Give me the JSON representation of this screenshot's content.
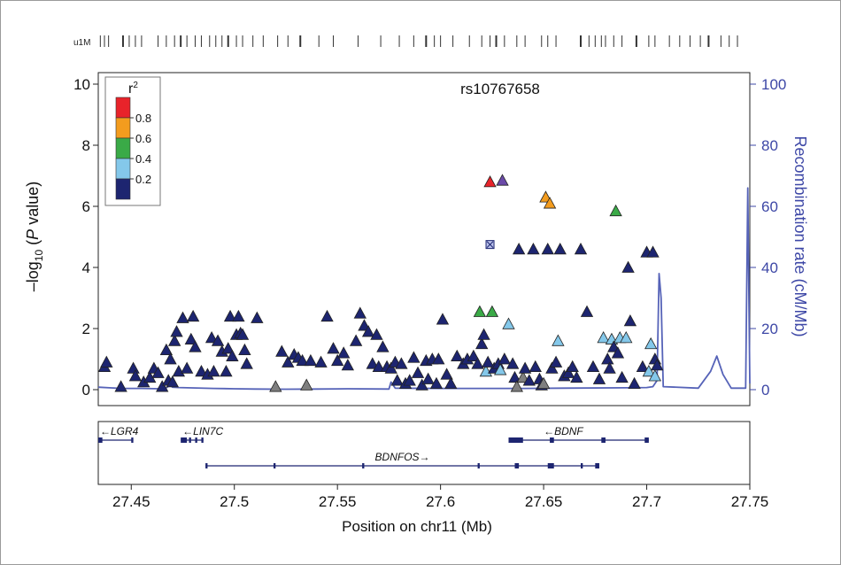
{
  "chart_data": {
    "type": "scatter",
    "title": "rs10767658",
    "xlabel": "Position on chr11 (Mb)",
    "ylabel_left": [
      "–log",
      "10",
      " (",
      "P",
      " value)"
    ],
    "ylabel_right": "Recombination rate (cM/Mb)",
    "xlim": [
      27.434,
      27.75
    ],
    "ylim": [
      0,
      10
    ],
    "ylim_right": [
      0,
      100
    ],
    "x_ticks": [
      27.45,
      27.5,
      27.55,
      27.6,
      27.65,
      27.7,
      27.75
    ],
    "x_tick_labels": [
      "27.45",
      "27.5",
      "27.55",
      "27.6",
      "27.65",
      "27.7",
      "27.75"
    ],
    "y_ticks": [
      0,
      2,
      4,
      6,
      8,
      10
    ],
    "y_tick_labels": [
      "0",
      "2",
      "4",
      "6",
      "8",
      "10"
    ],
    "y2_ticks": [
      0,
      20,
      40,
      60,
      80,
      100
    ],
    "y2_tick_labels": [
      "0",
      "20",
      "40",
      "60",
      "80",
      "100"
    ],
    "legend": {
      "title": "r",
      "title_sup": "2",
      "bins": [
        {
          "label": "0.8",
          "color": "#e8232a"
        },
        {
          "label": "0.6",
          "color": "#f39c1e"
        },
        {
          "label": "0.4",
          "color": "#3aaa47"
        },
        {
          "label": "0.2",
          "color": "#84c8ea"
        },
        {
          "label": "",
          "color": "#1d2570"
        }
      ],
      "placement": "top-left"
    },
    "colors": {
      "navy": "#1d2570",
      "lightblue": "#84c8ea",
      "green": "#3aaa47",
      "orange": "#f39c1e",
      "red": "#e8232a",
      "purple": "#6b4aa8",
      "grey": "#7f7f7f",
      "recomb_line": "#5663b8",
      "axis_right": "#3d47a6"
    },
    "lead_snp": {
      "x": 27.624,
      "y": 4.75
    },
    "points": [
      {
        "x": 27.437,
        "y": 0.75,
        "c": "navy"
      },
      {
        "x": 27.438,
        "y": 0.9,
        "c": "navy"
      },
      {
        "x": 27.445,
        "y": 0.1,
        "c": "navy"
      },
      {
        "x": 27.451,
        "y": 0.7,
        "c": "navy"
      },
      {
        "x": 27.452,
        "y": 0.45,
        "c": "navy"
      },
      {
        "x": 27.456,
        "y": 0.25,
        "c": "navy"
      },
      {
        "x": 27.459,
        "y": 0.4,
        "c": "navy"
      },
      {
        "x": 27.461,
        "y": 0.7,
        "c": "navy"
      },
      {
        "x": 27.463,
        "y": 0.55,
        "c": "navy"
      },
      {
        "x": 27.465,
        "y": 0.1,
        "c": "navy"
      },
      {
        "x": 27.467,
        "y": 1.3,
        "c": "navy"
      },
      {
        "x": 27.468,
        "y": 0.3,
        "c": "navy"
      },
      {
        "x": 27.469,
        "y": 1.0,
        "c": "navy"
      },
      {
        "x": 27.47,
        "y": 0.25,
        "c": "navy"
      },
      {
        "x": 27.471,
        "y": 1.6,
        "c": "navy"
      },
      {
        "x": 27.472,
        "y": 1.9,
        "c": "navy"
      },
      {
        "x": 27.473,
        "y": 0.6,
        "c": "navy"
      },
      {
        "x": 27.475,
        "y": 2.35,
        "c": "navy"
      },
      {
        "x": 27.477,
        "y": 0.7,
        "c": "navy"
      },
      {
        "x": 27.479,
        "y": 1.65,
        "c": "navy"
      },
      {
        "x": 27.48,
        "y": 2.4,
        "c": "navy"
      },
      {
        "x": 27.481,
        "y": 1.4,
        "c": "navy"
      },
      {
        "x": 27.484,
        "y": 0.6,
        "c": "navy"
      },
      {
        "x": 27.487,
        "y": 0.5,
        "c": "navy"
      },
      {
        "x": 27.489,
        "y": 1.7,
        "c": "navy"
      },
      {
        "x": 27.49,
        "y": 0.6,
        "c": "navy"
      },
      {
        "x": 27.492,
        "y": 1.6,
        "c": "navy"
      },
      {
        "x": 27.494,
        "y": 1.25,
        "c": "navy"
      },
      {
        "x": 27.496,
        "y": 0.6,
        "c": "navy"
      },
      {
        "x": 27.497,
        "y": 1.35,
        "c": "navy"
      },
      {
        "x": 27.498,
        "y": 2.4,
        "c": "navy"
      },
      {
        "x": 27.499,
        "y": 1.1,
        "c": "navy"
      },
      {
        "x": 27.501,
        "y": 1.8,
        "c": "navy"
      },
      {
        "x": 27.502,
        "y": 2.4,
        "c": "navy"
      },
      {
        "x": 27.503,
        "y": 1.85,
        "c": "navy"
      },
      {
        "x": 27.504,
        "y": 1.8,
        "c": "navy"
      },
      {
        "x": 27.505,
        "y": 1.3,
        "c": "navy"
      },
      {
        "x": 27.506,
        "y": 0.85,
        "c": "navy"
      },
      {
        "x": 27.511,
        "y": 2.35,
        "c": "navy"
      },
      {
        "x": 27.52,
        "y": 0.1,
        "c": "grey"
      },
      {
        "x": 27.523,
        "y": 1.25,
        "c": "navy"
      },
      {
        "x": 27.526,
        "y": 0.9,
        "c": "navy"
      },
      {
        "x": 27.529,
        "y": 1.15,
        "c": "navy"
      },
      {
        "x": 27.531,
        "y": 1.05,
        "c": "navy"
      },
      {
        "x": 27.533,
        "y": 0.95,
        "c": "navy"
      },
      {
        "x": 27.535,
        "y": 0.15,
        "c": "grey"
      },
      {
        "x": 27.537,
        "y": 0.95,
        "c": "navy"
      },
      {
        "x": 27.542,
        "y": 0.9,
        "c": "navy"
      },
      {
        "x": 27.545,
        "y": 2.4,
        "c": "navy"
      },
      {
        "x": 27.548,
        "y": 1.35,
        "c": "navy"
      },
      {
        "x": 27.55,
        "y": 0.95,
        "c": "navy"
      },
      {
        "x": 27.553,
        "y": 1.2,
        "c": "navy"
      },
      {
        "x": 27.555,
        "y": 0.8,
        "c": "navy"
      },
      {
        "x": 27.559,
        "y": 1.6,
        "c": "navy"
      },
      {
        "x": 27.561,
        "y": 2.5,
        "c": "navy"
      },
      {
        "x": 27.563,
        "y": 2.1,
        "c": "navy"
      },
      {
        "x": 27.565,
        "y": 1.9,
        "c": "navy"
      },
      {
        "x": 27.567,
        "y": 0.85,
        "c": "navy"
      },
      {
        "x": 27.569,
        "y": 1.8,
        "c": "navy"
      },
      {
        "x": 27.57,
        "y": 0.75,
        "c": "navy"
      },
      {
        "x": 27.572,
        "y": 1.4,
        "c": "navy"
      },
      {
        "x": 27.574,
        "y": 0.75,
        "c": "navy"
      },
      {
        "x": 27.576,
        "y": 0.7,
        "c": "navy"
      },
      {
        "x": 27.578,
        "y": 0.9,
        "c": "navy"
      },
      {
        "x": 27.579,
        "y": 0.3,
        "c": "navy"
      },
      {
        "x": 27.581,
        "y": 0.85,
        "c": "navy"
      },
      {
        "x": 27.583,
        "y": 0.2,
        "c": "navy"
      },
      {
        "x": 27.585,
        "y": 0.3,
        "c": "navy"
      },
      {
        "x": 27.587,
        "y": 1.05,
        "c": "navy"
      },
      {
        "x": 27.589,
        "y": 0.55,
        "c": "navy"
      },
      {
        "x": 27.591,
        "y": 0.15,
        "c": "navy"
      },
      {
        "x": 27.593,
        "y": 0.95,
        "c": "navy"
      },
      {
        "x": 27.594,
        "y": 0.35,
        "c": "navy"
      },
      {
        "x": 27.596,
        "y": 1.0,
        "c": "navy"
      },
      {
        "x": 27.598,
        "y": 0.2,
        "c": "navy"
      },
      {
        "x": 27.599,
        "y": 1.0,
        "c": "navy"
      },
      {
        "x": 27.601,
        "y": 2.3,
        "c": "navy"
      },
      {
        "x": 27.603,
        "y": 0.5,
        "c": "navy"
      },
      {
        "x": 27.605,
        "y": 0.2,
        "c": "navy"
      },
      {
        "x": 27.608,
        "y": 1.1,
        "c": "navy"
      },
      {
        "x": 27.611,
        "y": 0.85,
        "c": "navy"
      },
      {
        "x": 27.613,
        "y": 1.0,
        "c": "navy"
      },
      {
        "x": 27.616,
        "y": 1.1,
        "c": "navy"
      },
      {
        "x": 27.618,
        "y": 0.85,
        "c": "navy"
      },
      {
        "x": 27.619,
        "y": 2.55,
        "c": "green"
      },
      {
        "x": 27.62,
        "y": 1.5,
        "c": "navy"
      },
      {
        "x": 27.621,
        "y": 1.8,
        "c": "navy"
      },
      {
        "x": 27.622,
        "y": 0.6,
        "c": "lightblue"
      },
      {
        "x": 27.623,
        "y": 0.9,
        "c": "navy"
      },
      {
        "x": 27.624,
        "y": 6.8,
        "c": "red"
      },
      {
        "x": 27.625,
        "y": 2.55,
        "c": "green"
      },
      {
        "x": 27.626,
        "y": 0.7,
        "c": "navy"
      },
      {
        "x": 27.628,
        "y": 0.85,
        "c": "navy"
      },
      {
        "x": 27.629,
        "y": 0.65,
        "c": "lightblue"
      },
      {
        "x": 27.63,
        "y": 6.85,
        "c": "purple"
      },
      {
        "x": 27.631,
        "y": 1.0,
        "c": "navy"
      },
      {
        "x": 27.633,
        "y": 2.15,
        "c": "lightblue"
      },
      {
        "x": 27.635,
        "y": 0.85,
        "c": "navy"
      },
      {
        "x": 27.636,
        "y": 0.4,
        "c": "navy"
      },
      {
        "x": 27.637,
        "y": 0.1,
        "c": "grey"
      },
      {
        "x": 27.638,
        "y": 4.6,
        "c": "navy"
      },
      {
        "x": 27.64,
        "y": 0.4,
        "c": "grey"
      },
      {
        "x": 27.641,
        "y": 0.7,
        "c": "navy"
      },
      {
        "x": 27.643,
        "y": 0.3,
        "c": "navy"
      },
      {
        "x": 27.645,
        "y": 4.6,
        "c": "navy"
      },
      {
        "x": 27.646,
        "y": 0.75,
        "c": "navy"
      },
      {
        "x": 27.648,
        "y": 0.35,
        "c": "navy"
      },
      {
        "x": 27.649,
        "y": 0.15,
        "c": "navy"
      },
      {
        "x": 27.65,
        "y": 0.2,
        "c": "grey"
      },
      {
        "x": 27.651,
        "y": 6.3,
        "c": "orange"
      },
      {
        "x": 27.652,
        "y": 4.6,
        "c": "navy"
      },
      {
        "x": 27.653,
        "y": 6.1,
        "c": "orange"
      },
      {
        "x": 27.654,
        "y": 0.7,
        "c": "navy"
      },
      {
        "x": 27.656,
        "y": 0.9,
        "c": "navy"
      },
      {
        "x": 27.657,
        "y": 1.6,
        "c": "lightblue"
      },
      {
        "x": 27.658,
        "y": 4.6,
        "c": "navy"
      },
      {
        "x": 27.66,
        "y": 0.45,
        "c": "navy"
      },
      {
        "x": 27.662,
        "y": 0.55,
        "c": "navy"
      },
      {
        "x": 27.664,
        "y": 0.75,
        "c": "navy"
      },
      {
        "x": 27.666,
        "y": 0.4,
        "c": "navy"
      },
      {
        "x": 27.668,
        "y": 4.6,
        "c": "navy"
      },
      {
        "x": 27.671,
        "y": 2.55,
        "c": "navy"
      },
      {
        "x": 27.674,
        "y": 0.75,
        "c": "navy"
      },
      {
        "x": 27.677,
        "y": 0.35,
        "c": "navy"
      },
      {
        "x": 27.679,
        "y": 1.7,
        "c": "lightblue"
      },
      {
        "x": 27.681,
        "y": 1.0,
        "c": "navy"
      },
      {
        "x": 27.682,
        "y": 0.7,
        "c": "navy"
      },
      {
        "x": 27.683,
        "y": 1.65,
        "c": "lightblue"
      },
      {
        "x": 27.684,
        "y": 1.4,
        "c": "navy"
      },
      {
        "x": 27.685,
        "y": 5.85,
        "c": "green"
      },
      {
        "x": 27.686,
        "y": 1.2,
        "c": "navy"
      },
      {
        "x": 27.687,
        "y": 1.7,
        "c": "lightblue"
      },
      {
        "x": 27.688,
        "y": 0.4,
        "c": "navy"
      },
      {
        "x": 27.69,
        "y": 1.7,
        "c": "lightblue"
      },
      {
        "x": 27.691,
        "y": 4.0,
        "c": "navy"
      },
      {
        "x": 27.692,
        "y": 2.25,
        "c": "navy"
      },
      {
        "x": 27.694,
        "y": 0.2,
        "c": "navy"
      },
      {
        "x": 27.698,
        "y": 0.75,
        "c": "navy"
      },
      {
        "x": 27.7,
        "y": 4.5,
        "c": "navy"
      },
      {
        "x": 27.701,
        "y": 0.6,
        "c": "lightblue"
      },
      {
        "x": 27.702,
        "y": 1.5,
        "c": "lightblue"
      },
      {
        "x": 27.703,
        "y": 4.5,
        "c": "navy"
      },
      {
        "x": 27.704,
        "y": 0.45,
        "c": "lightblue"
      },
      {
        "x": 27.704,
        "y": 1.0,
        "c": "navy"
      },
      {
        "x": 27.705,
        "y": 0.8,
        "c": "navy"
      }
    ],
    "recombination": [
      [
        27.434,
        0.8
      ],
      [
        27.445,
        0.4
      ],
      [
        27.455,
        0.4
      ],
      [
        27.464,
        0.3
      ],
      [
        27.467,
        0.6
      ],
      [
        27.469,
        1.5
      ],
      [
        27.47,
        0.8
      ],
      [
        27.473,
        0.7
      ],
      [
        27.49,
        0.4
      ],
      [
        27.5,
        0.3
      ],
      [
        27.51,
        0.2
      ],
      [
        27.525,
        0.15
      ],
      [
        27.54,
        0.2
      ],
      [
        27.555,
        0.3
      ],
      [
        27.575,
        0.2
      ],
      [
        27.576,
        2.5
      ],
      [
        27.578,
        0.5
      ],
      [
        27.6,
        0.4
      ],
      [
        27.64,
        0.4
      ],
      [
        27.69,
        0.6
      ],
      [
        27.7,
        0.7
      ],
      [
        27.703,
        1.0
      ],
      [
        27.705,
        3.0
      ],
      [
        27.706,
        38.0
      ],
      [
        27.707,
        30.0
      ],
      [
        27.708,
        1.0
      ],
      [
        27.725,
        0.5
      ],
      [
        27.731,
        6.0
      ],
      [
        27.734,
        11.0
      ],
      [
        27.737,
        5.0
      ],
      [
        27.741,
        0.5
      ],
      [
        27.748,
        0.5
      ],
      [
        27.749,
        66.0
      ],
      [
        27.75,
        2.0
      ]
    ],
    "marker_ticks": [
      27.435,
      27.437,
      27.439,
      27.446,
      27.449,
      27.452,
      27.455,
      27.463,
      27.467,
      27.471,
      27.474,
      27.477,
      27.481,
      27.484,
      27.488,
      27.491,
      27.494,
      27.497,
      27.501,
      27.504,
      27.509,
      27.514,
      27.521,
      27.526,
      27.532,
      27.541,
      27.548,
      27.56,
      27.571,
      27.58,
      27.587,
      27.593,
      27.597,
      27.6,
      27.606,
      27.614,
      27.62,
      27.624,
      27.627,
      27.631,
      27.637,
      27.641,
      27.649,
      27.652,
      27.656,
      27.668,
      27.672,
      27.675,
      27.678,
      27.68,
      27.684,
      27.688,
      27.695,
      27.701,
      27.704,
      27.711,
      27.716,
      27.721,
      27.726,
      27.73,
      27.736,
      27.74,
      27.744
    ],
    "marker_label": "u1M",
    "genes": [
      {
        "name": "LGR4",
        "start": 27.434,
        "end": 27.451,
        "row": 0,
        "strand": "-",
        "exons": [
          [
            27.434,
            27.436
          ],
          [
            27.45,
            27.451
          ]
        ]
      },
      {
        "name": "LIN7C",
        "start": 27.474,
        "end": 27.485,
        "row": 0,
        "strand": "-",
        "exons": [
          [
            27.474,
            27.477
          ],
          [
            27.478,
            27.479
          ],
          [
            27.481,
            27.482
          ],
          [
            27.484,
            27.485
          ]
        ]
      },
      {
        "name": "BDNF",
        "start": 27.633,
        "end": 27.701,
        "row": 0,
        "strand": "-",
        "exons": [
          [
            27.633,
            27.64
          ],
          [
            27.653,
            27.655
          ],
          [
            27.678,
            27.68
          ],
          [
            27.699,
            27.701
          ]
        ]
      },
      {
        "name": "BDNFOS",
        "start": 27.486,
        "end": 27.677,
        "row": 1,
        "strand": "+",
        "exons": [
          [
            27.486,
            27.487
          ],
          [
            27.519,
            27.52
          ],
          [
            27.562,
            27.563
          ],
          [
            27.618,
            27.619
          ],
          [
            27.636,
            27.638
          ],
          [
            27.652,
            27.655
          ],
          [
            27.668,
            27.669
          ],
          [
            27.675,
            27.677
          ]
        ]
      }
    ]
  }
}
